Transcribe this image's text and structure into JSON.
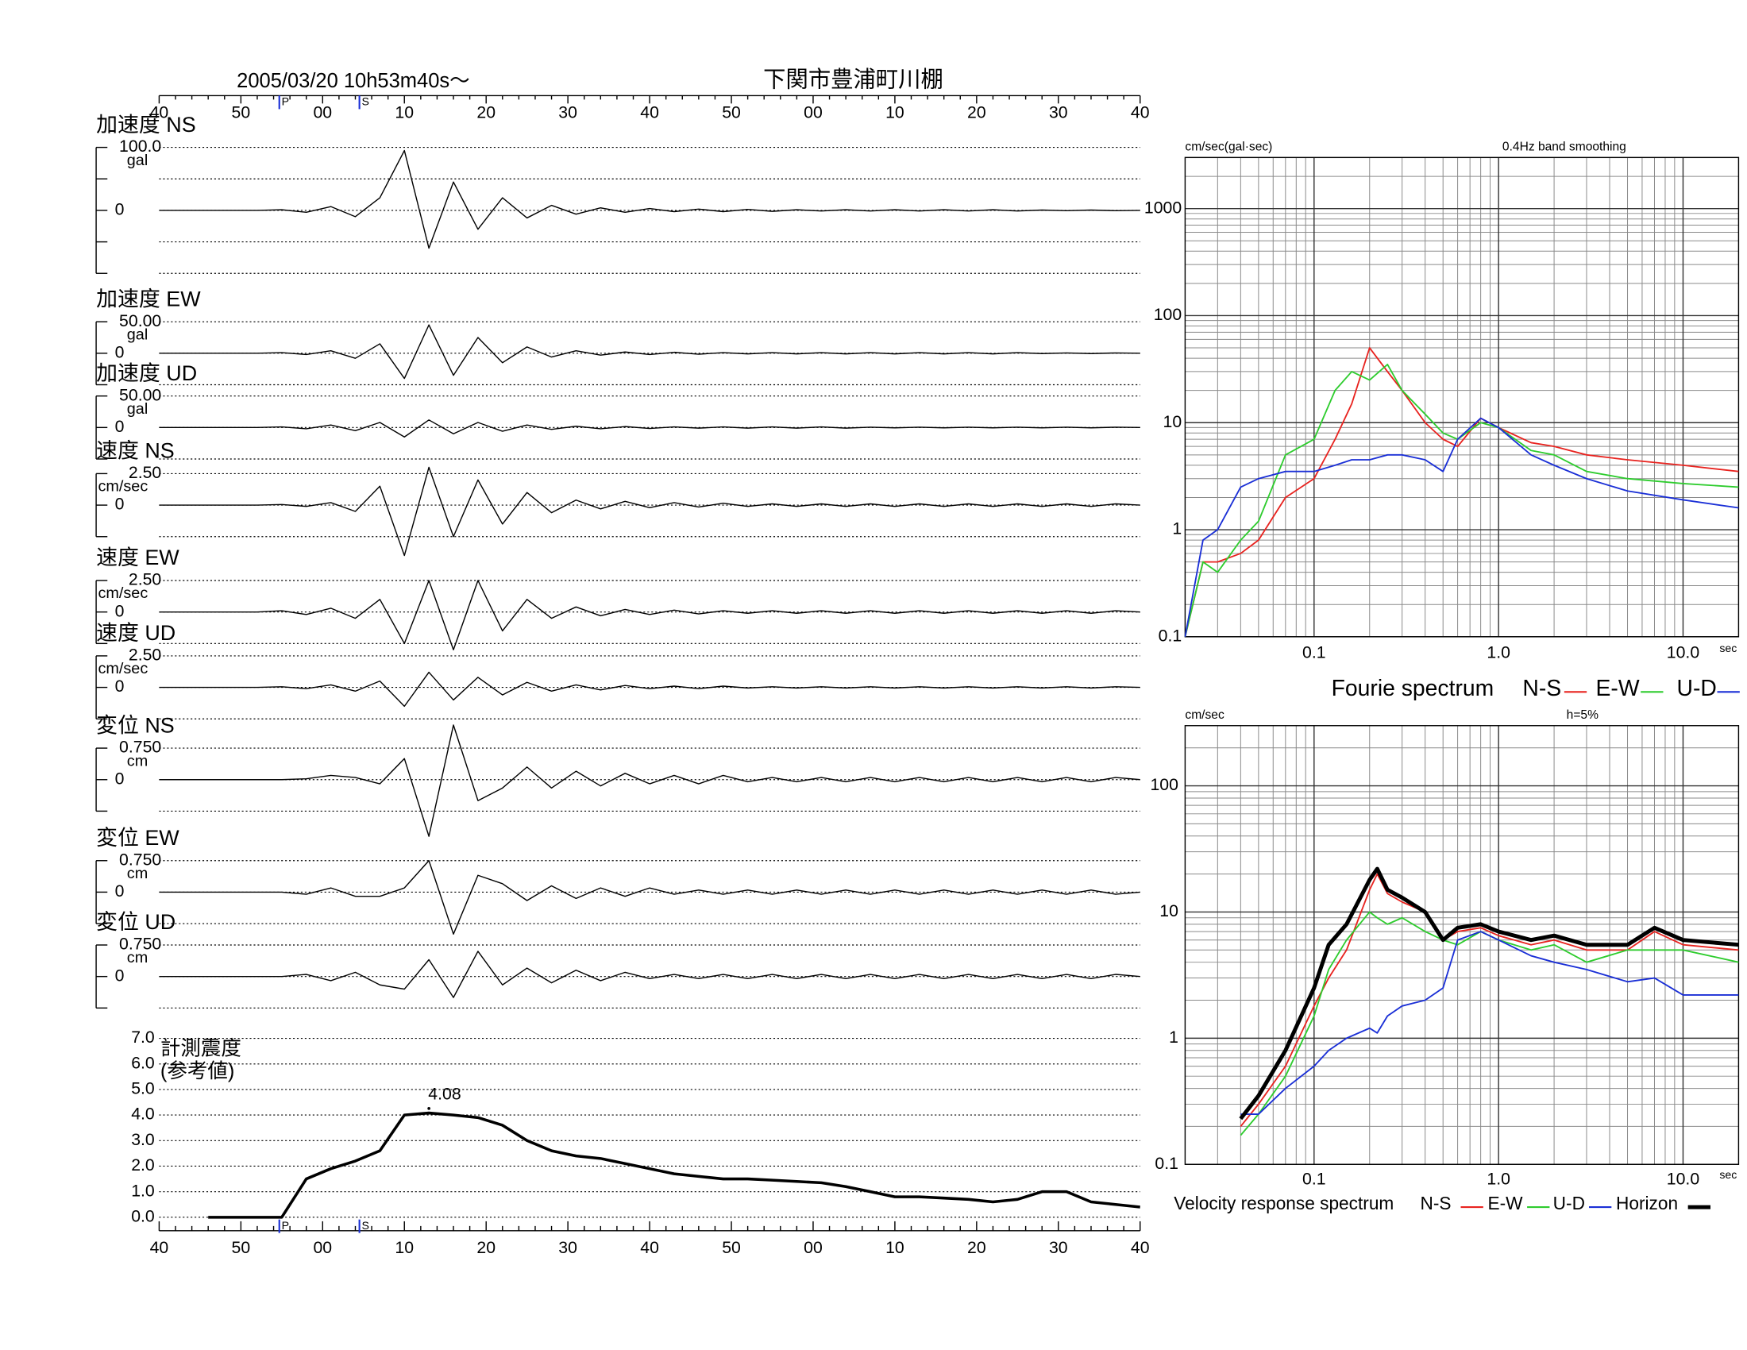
{
  "chart_data": [
    {
      "type": "seismogram",
      "title": "2005/03/20  10h53m40s〜",
      "location": "下関市豊浦町川棚",
      "xlim": [
        0,
        120
      ],
      "xticks": [
        {
          "value": 0,
          "label": "40"
        },
        {
          "value": 10,
          "label": "50"
        },
        {
          "value": 20,
          "label": "00"
        },
        {
          "value": 30,
          "label": "10"
        },
        {
          "value": 40,
          "label": "20"
        },
        {
          "value": 50,
          "label": "30"
        },
        {
          "value": 60,
          "label": "40"
        },
        {
          "value": 70,
          "label": "50"
        },
        {
          "value": 80,
          "label": "00"
        },
        {
          "value": 90,
          "label": "10"
        },
        {
          "value": 100,
          "label": "20"
        },
        {
          "value": 110,
          "label": "30"
        },
        {
          "value": 120,
          "label": "40"
        }
      ],
      "markers": [
        {
          "label": "P",
          "x": 14.7,
          "color": "#1a2fd6"
        },
        {
          "label": "S",
          "x": 24.5,
          "color": "#1a2fd6"
        }
      ],
      "x": [
        0,
        3,
        6,
        9,
        12,
        15,
        18,
        21,
        24,
        27,
        30,
        33,
        36,
        39,
        42,
        45,
        48,
        51,
        54,
        57,
        60,
        63,
        66,
        69,
        72,
        75,
        78,
        81,
        84,
        87,
        90,
        93,
        96,
        99,
        102,
        105,
        108,
        111,
        114,
        117,
        120
      ],
      "panels": [
        {
          "title": "加速度 NS",
          "unit": "gal",
          "ylim": [
            -100,
            100
          ],
          "yticks": [
            {
              "value": 100,
              "label": "100.0"
            },
            0
          ],
          "ygrid": [
            50,
            -50
          ],
          "values": [
            0,
            0,
            0,
            0,
            0,
            1,
            -3,
            6,
            -10,
            20,
            95,
            -60,
            45,
            -30,
            20,
            -12,
            8,
            -6,
            4,
            -3,
            3,
            -2,
            2,
            -2,
            1.5,
            -1.5,
            1,
            -1,
            1,
            -1,
            1,
            -1,
            1,
            -1,
            1,
            -1,
            0.5,
            -0.5,
            0.5,
            -0.5,
            0
          ]
        },
        {
          "title": "加速度 EW",
          "unit": "gal",
          "ylim": [
            -50,
            50
          ],
          "yticks": [
            {
              "value": 50,
              "label": "50.00"
            },
            0
          ],
          "values": [
            0,
            0,
            0,
            0,
            0,
            1,
            -2,
            4,
            -8,
            15,
            -40,
            45,
            -35,
            25,
            -15,
            10,
            -6,
            4,
            -3,
            2,
            -2,
            1.5,
            -1.5,
            1,
            -1,
            1,
            -1,
            1,
            -1,
            1,
            -1,
            1,
            -1,
            1,
            -1,
            1,
            -0.5,
            0.5,
            -0.5,
            0.5,
            0
          ]
        },
        {
          "title": "加速度 UD",
          "unit": "gal",
          "ylim": [
            -50,
            50
          ],
          "yticks": [
            {
              "value": 50,
              "label": "50.00"
            },
            0
          ],
          "values": [
            0,
            0,
            0,
            0,
            0,
            1,
            -2,
            4,
            -5,
            8,
            -15,
            12,
            -10,
            8,
            -6,
            4,
            -3,
            2,
            -2,
            1.5,
            -1.5,
            1,
            -1,
            1,
            -1,
            1,
            -1,
            1,
            -1,
            0.5,
            -0.5,
            0.5,
            -0.5,
            0.5,
            -0.5,
            0.5,
            -0.5,
            0.5,
            -0.5,
            0.5,
            0
          ]
        },
        {
          "title": "速度 NS",
          "unit": "cm/sec",
          "ylim": [
            -2.5,
            2.5
          ],
          "yticks": [
            {
              "value": 2.5,
              "label": "2.50"
            },
            0
          ],
          "values": [
            0,
            0,
            0,
            0,
            0,
            0.05,
            -0.1,
            0.2,
            -0.5,
            1.5,
            -4,
            3,
            -2.5,
            2,
            -1.5,
            1,
            -0.6,
            0.4,
            -0.3,
            0.3,
            -0.2,
            0.2,
            -0.15,
            0.15,
            -0.1,
            0.1,
            -0.1,
            0.1,
            -0.1,
            0.1,
            -0.1,
            0.1,
            -0.1,
            0.1,
            -0.1,
            0.1,
            -0.1,
            0.1,
            -0.1,
            0.1,
            0
          ]
        },
        {
          "title": "速度 EW",
          "unit": "cm/sec",
          "ylim": [
            -2.5,
            2.5
          ],
          "yticks": [
            {
              "value": 2.5,
              "label": "2.50"
            },
            0
          ],
          "values": [
            0,
            0,
            0,
            0,
            0,
            0.1,
            -0.2,
            0.3,
            -0.5,
            1,
            -2.5,
            2.5,
            -3,
            2.5,
            -1.5,
            1,
            -0.5,
            0.4,
            -0.3,
            0.2,
            -0.2,
            0.15,
            -0.15,
            0.1,
            -0.1,
            0.1,
            -0.1,
            0.1,
            -0.1,
            0.1,
            -0.1,
            0.1,
            -0.1,
            0.1,
            -0.1,
            0.1,
            -0.1,
            0.1,
            -0.1,
            0.1,
            0
          ]
        },
        {
          "title": "速度 UD",
          "unit": "cm/sec",
          "ylim": [
            -2.5,
            2.5
          ],
          "yticks": [
            {
              "value": 2.5,
              "label": "2.50"
            },
            0
          ],
          "values": [
            0,
            0,
            0,
            0,
            0,
            0.05,
            -0.1,
            0.2,
            -0.3,
            0.5,
            -1.5,
            1.2,
            -1,
            0.8,
            -0.6,
            0.4,
            -0.3,
            0.2,
            -0.2,
            0.15,
            -0.1,
            0.1,
            -0.1,
            0.1,
            -0.05,
            0.05,
            -0.05,
            0.05,
            -0.05,
            0.05,
            -0.05,
            0.05,
            -0.05,
            0.05,
            -0.05,
            0.05,
            -0.05,
            0.05,
            -0.05,
            0.05,
            0
          ]
        },
        {
          "title": "変位 NS",
          "unit": "cm",
          "ylim": [
            -0.75,
            0.75
          ],
          "yticks": [
            {
              "value": 0.75,
              "label": "0.750"
            },
            0
          ],
          "values": [
            0,
            0,
            0,
            0,
            0,
            0,
            0.02,
            0.1,
            0.05,
            -0.1,
            0.5,
            -1.35,
            1.3,
            -0.5,
            -0.2,
            0.3,
            -0.2,
            0.2,
            -0.15,
            0.15,
            -0.1,
            0.1,
            -0.1,
            0.1,
            -0.05,
            0.05,
            -0.05,
            0.05,
            -0.05,
            0.05,
            -0.05,
            0.05,
            -0.05,
            0.05,
            -0.05,
            0.05,
            -0.05,
            0.05,
            -0.05,
            0.05,
            0
          ]
        },
        {
          "title": "変位 EW",
          "unit": "cm",
          "ylim": [
            -0.75,
            0.75
          ],
          "yticks": [
            {
              "value": 0.75,
              "label": "0.750"
            },
            0
          ],
          "values": [
            0,
            0,
            0,
            0,
            0,
            0,
            -0.05,
            0.1,
            -0.1,
            -0.1,
            0.1,
            0.75,
            -1,
            0.4,
            0.2,
            -0.2,
            0.15,
            -0.15,
            0.1,
            -0.1,
            0.1,
            -0.05,
            0.05,
            -0.05,
            0.05,
            -0.05,
            0.05,
            -0.05,
            0.05,
            -0.05,
            0.05,
            -0.05,
            0.05,
            -0.05,
            0.05,
            -0.05,
            0.05,
            -0.05,
            0.05,
            -0.05,
            0
          ]
        },
        {
          "title": "変位 UD",
          "unit": "cm",
          "ylim": [
            -0.75,
            0.75
          ],
          "yticks": [
            {
              "value": 0.75,
              "label": "0.750"
            },
            0
          ],
          "values": [
            0,
            0,
            0,
            0,
            0,
            0,
            0.05,
            -0.1,
            0.1,
            -0.2,
            -0.3,
            0.4,
            -0.5,
            0.6,
            -0.2,
            0.2,
            -0.15,
            0.15,
            -0.1,
            0.1,
            -0.05,
            0.05,
            -0.05,
            0.05,
            -0.05,
            0.05,
            -0.05,
            0.05,
            -0.05,
            0.05,
            -0.05,
            0.05,
            -0.05,
            0.05,
            -0.05,
            0.05,
            -0.05,
            0.05,
            -0.05,
            0.05,
            0
          ]
        }
      ],
      "intensity": {
        "title": "計測震度",
        "subtitle": "(参考値)",
        "ylim": [
          0,
          7
        ],
        "yticks": [
          {
            "value": 0,
            "label": "0.0"
          },
          {
            "value": 1,
            "label": "1.0"
          },
          {
            "value": 2,
            "label": "2.0"
          },
          {
            "value": 3,
            "label": "3.0"
          },
          {
            "value": 4,
            "label": "4.0"
          },
          {
            "value": 5,
            "label": "5.0"
          },
          {
            "value": 6,
            "label": "6.0"
          },
          {
            "value": 7,
            "label": "7.0"
          }
        ],
        "grid": true,
        "values": [
          null,
          null,
          0,
          0,
          0,
          0,
          1.5,
          1.9,
          2.2,
          2.6,
          4.0,
          4.08,
          4.0,
          3.9,
          3.6,
          3.0,
          2.6,
          2.4,
          2.3,
          2.1,
          1.9,
          1.7,
          1.6,
          1.5,
          1.5,
          1.45,
          1.4,
          1.35,
          1.2,
          1.0,
          0.8,
          0.8,
          0.75,
          0.7,
          0.6,
          0.7,
          1.0,
          1.0,
          0.6,
          0.5,
          0.4
        ],
        "annotations": [
          {
            "x": 33,
            "y": 4.08
          }
        ]
      }
    },
    {
      "type": "line",
      "title": "Fourie spectrum",
      "y_label": "cm/sec(gal·sec)",
      "note": "0.4Hz band smoothing",
      "x_label": "sec",
      "xlog": true,
      "ylog": true,
      "grid": true,
      "xlim": [
        0.02,
        20
      ],
      "ylim": [
        0.1,
        3000
      ],
      "xticks": [
        0.1,
        {
          "value": 1,
          "label": "1.0"
        },
        {
          "value": 10,
          "label": "10.0"
        }
      ],
      "yticks": [
        0.1,
        1,
        10,
        100,
        1000
      ],
      "x": [
        0.02,
        0.025,
        0.03,
        0.04,
        0.05,
        0.07,
        0.1,
        0.13,
        0.16,
        0.2,
        0.25,
        0.3,
        0.4,
        0.5,
        0.6,
        0.8,
        1,
        1.5,
        2,
        3,
        5,
        10,
        20
      ],
      "series": [
        {
          "name": "N-S",
          "color": "#e8231f",
          "values": [
            0.1,
            0.5,
            0.5,
            0.6,
            0.8,
            2,
            3,
            7,
            15,
            50,
            30,
            20,
            10,
            7,
            6,
            11,
            9,
            6.5,
            6,
            5,
            4.5,
            4,
            3.5
          ]
        },
        {
          "name": "E-W",
          "color": "#2ecc2e",
          "values": [
            0.1,
            0.5,
            0.4,
            0.8,
            1.2,
            5,
            7,
            20,
            30,
            25,
            35,
            20,
            12,
            8,
            7,
            10,
            9,
            5.5,
            5,
            3.5,
            3,
            2.7,
            2.5
          ]
        },
        {
          "name": "U-D",
          "color": "#1a2fd6",
          "values": [
            0.1,
            0.8,
            1,
            2.5,
            3,
            3.5,
            3.5,
            4,
            4.5,
            4.5,
            5,
            5,
            4.5,
            3.5,
            7,
            11,
            9,
            5,
            4,
            3,
            2.3,
            1.9,
            1.6
          ]
        }
      ]
    },
    {
      "type": "line",
      "title": "Velocity response spectrum",
      "y_label": "cm/sec",
      "note": "h=5%",
      "x_label": "sec",
      "xlog": true,
      "ylog": true,
      "grid": true,
      "xlim": [
        0.02,
        20
      ],
      "ylim": [
        0.1,
        300
      ],
      "xticks": [
        0.1,
        {
          "value": 1,
          "label": "1.0"
        },
        {
          "value": 10,
          "label": "10.0"
        }
      ],
      "yticks": [
        0.1,
        1,
        10,
        100
      ],
      "x": [
        0.04,
        0.05,
        0.07,
        0.1,
        0.12,
        0.15,
        0.2,
        0.22,
        0.25,
        0.3,
        0.4,
        0.5,
        0.6,
        0.8,
        1,
        1.5,
        2,
        3,
        5,
        7,
        10,
        20
      ],
      "series": [
        {
          "name": "N-S",
          "color": "#e8231f",
          "values": [
            0.2,
            0.3,
            0.6,
            1.8,
            3,
            5,
            15,
            20,
            14,
            12,
            10,
            6,
            7,
            7.5,
            6.5,
            5.5,
            6,
            5,
            5,
            7,
            5.5,
            5
          ]
        },
        {
          "name": "E-W",
          "color": "#2ecc2e",
          "values": [
            0.17,
            0.25,
            0.5,
            1.5,
            3.5,
            6,
            10,
            9,
            8,
            9,
            7,
            6,
            5.5,
            7,
            6,
            5,
            5.5,
            4,
            5,
            5,
            5,
            4
          ]
        },
        {
          "name": "U-D",
          "color": "#1a2fd6",
          "values": [
            0.25,
            0.25,
            0.4,
            0.6,
            0.8,
            1,
            1.2,
            1.1,
            1.5,
            1.8,
            2,
            2.5,
            6,
            7,
            6,
            4.5,
            4,
            3.5,
            2.8,
            3,
            2.2,
            2.2
          ]
        },
        {
          "name": "Horizon",
          "color": "#000000",
          "width": 3.5,
          "values": [
            0.23,
            0.35,
            0.8,
            2.5,
            5.5,
            8,
            18,
            22,
            15,
            13,
            10,
            6,
            7.5,
            8,
            7,
            6,
            6.5,
            5.5,
            5.5,
            7.5,
            6,
            5.5
          ]
        }
      ]
    }
  ]
}
